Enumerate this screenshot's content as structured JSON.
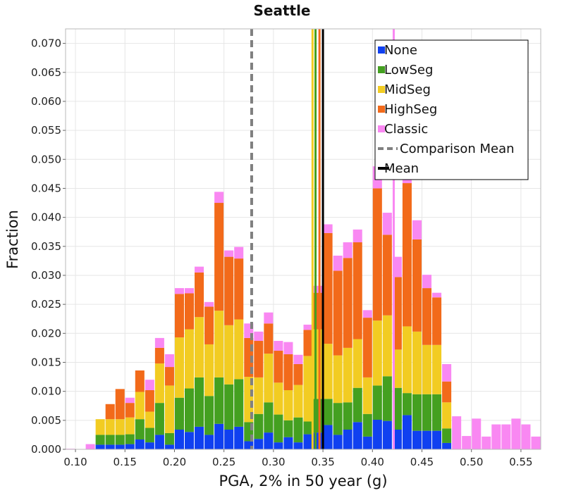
{
  "chart_data": {
    "type": "bar",
    "stacked": true,
    "title": "Seattle",
    "xlabel": "PGA, 2% in 50 year (g)",
    "ylabel": "Fraction",
    "xlim": [
      0.09,
      0.57
    ],
    "ylim": [
      0.0,
      0.0725
    ],
    "x_ticks": [
      "0.10",
      "0.15",
      "0.20",
      "0.25",
      "0.30",
      "0.35",
      "0.40",
      "0.45",
      "0.50",
      "0.55"
    ],
    "y_ticks": [
      "0.000",
      "0.005",
      "0.010",
      "0.015",
      "0.020",
      "0.025",
      "0.030",
      "0.035",
      "0.040",
      "0.045",
      "0.050",
      "0.055",
      "0.060",
      "0.065",
      "0.070"
    ],
    "grid": true,
    "legend_position": "top-right",
    "bin_width": 0.01,
    "bin_centers": [
      0.095,
      0.105,
      0.115,
      0.125,
      0.135,
      0.145,
      0.155,
      0.165,
      0.175,
      0.185,
      0.195,
      0.205,
      0.215,
      0.225,
      0.235,
      0.245,
      0.255,
      0.265,
      0.275,
      0.285,
      0.295,
      0.305,
      0.315,
      0.325,
      0.335,
      0.345,
      0.355,
      0.365,
      0.375,
      0.385,
      0.395,
      0.405,
      0.415,
      0.425,
      0.435,
      0.445,
      0.455,
      0.465,
      0.475,
      0.485,
      0.495,
      0.505,
      0.515,
      0.525,
      0.535,
      0.545,
      0.555,
      0.565
    ],
    "series": [
      {
        "name": "None",
        "color": "#1040f0",
        "values": [
          0,
          0,
          0,
          0.0008,
          0.0008,
          0.0008,
          0.0009,
          0.0017,
          0.0012,
          0.0025,
          0.0008,
          0.0034,
          0.003,
          0.0039,
          0.0025,
          0.0044,
          0.0034,
          0.0039,
          0.0014,
          0.0018,
          0.0029,
          0.0012,
          0.0021,
          0.0012,
          0.0026,
          0.0029,
          0.0042,
          0.0025,
          0.0034,
          0.0047,
          0.0022,
          0.0051,
          0.0049,
          0.0034,
          0.0059,
          0.0032,
          0.0032,
          0.0032,
          0.0011,
          0,
          0,
          0,
          0,
          0,
          0,
          0,
          0,
          0
        ]
      },
      {
        "name": "LowSeg",
        "color": "#44a020",
        "values": [
          0,
          0,
          0,
          0.0017,
          0.0017,
          0.0017,
          0.0017,
          0.0035,
          0.0025,
          0.0055,
          0.002,
          0.0055,
          0.0075,
          0.0085,
          0.0067,
          0.008,
          0.0078,
          0.0082,
          0.0033,
          0.0043,
          0.0052,
          0.0048,
          0.0029,
          0.0043,
          0.0022,
          0.0058,
          0.0045,
          0.0055,
          0.0047,
          0.0059,
          0.0039,
          0.0059,
          0.0077,
          0.0072,
          0.0038,
          0.0063,
          0.0063,
          0.0063,
          0.0025,
          0,
          0,
          0,
          0,
          0,
          0,
          0,
          0,
          0
        ]
      },
      {
        "name": "MidSeg",
        "color": "#f2cc22",
        "values": [
          0,
          0,
          0,
          0.0027,
          0.0027,
          0.0027,
          0.0029,
          0.0047,
          0.0028,
          0.0068,
          0.0082,
          0.0104,
          0.0102,
          0.0104,
          0.0089,
          0.0115,
          0.0102,
          0.0103,
          0.0078,
          0.0063,
          0.0084,
          0.0055,
          0.0052,
          0.0056,
          0.0113,
          0.012,
          0.0095,
          0.0082,
          0.0094,
          0.0084,
          0.0063,
          0.0112,
          0.0105,
          0.0066,
          0.0115,
          0.0108,
          0.0085,
          0.0085,
          0.0045,
          0,
          0,
          0,
          0,
          0,
          0,
          0,
          0,
          0
        ]
      },
      {
        "name": "HighSeg",
        "color": "#f26a1a",
        "values": [
          0,
          0,
          0,
          0,
          0.0026,
          0.0052,
          0.0025,
          0.0037,
          0.0037,
          0.0027,
          0.0032,
          0.0075,
          0.0062,
          0.0077,
          0.0065,
          0.0186,
          0.0118,
          0.0105,
          0.0067,
          0.0063,
          0.0052,
          0.0055,
          0.0062,
          0.0036,
          0.0045,
          0.0063,
          0.0191,
          0.0146,
          0.0155,
          0.0167,
          0.0103,
          0.0228,
          0.0139,
          0.0125,
          0.0247,
          0.0159,
          0.0098,
          0.0082,
          0.0036,
          0,
          0,
          0,
          0,
          0,
          0,
          0,
          0,
          0
        ]
      },
      {
        "name": "Classic",
        "color": "#f988f2",
        "values": [
          0.0001,
          0,
          0.0009,
          0,
          0,
          0,
          0.0009,
          0,
          0.0018,
          0.0017,
          0.0022,
          0.001,
          0.0009,
          0.001,
          0.0008,
          0.0019,
          0.0011,
          0.002,
          0.0025,
          0.0016,
          0.0019,
          0.0017,
          0.0021,
          0.0016,
          0.0009,
          0.0012,
          0.0015,
          0.0026,
          0.0027,
          0.0022,
          0.0013,
          0.0038,
          0.0038,
          0.0035,
          0.0044,
          0.0033,
          0.0023,
          0.0008,
          0.003,
          0.0057,
          0.0023,
          0.0053,
          0.0022,
          0.0043,
          0.0043,
          0.0053,
          0.0043,
          0.0022
        ]
      }
    ],
    "vertical_lines": [
      {
        "name": "Comparison Mean",
        "x": 0.278,
        "color": "#808080",
        "dashed": true
      },
      {
        "name": "Mean",
        "x": 0.35,
        "color": "#000000",
        "dashed": false
      },
      {
        "name": "MidSeg",
        "x": 0.3395,
        "color": "#f2cc22",
        "dashed": false
      },
      {
        "name": "LowSeg",
        "x": 0.3425,
        "color": "#44a020",
        "dashed": false
      },
      {
        "name": "HighSeg",
        "x": 0.3465,
        "color": "#f26a1a",
        "dashed": false
      },
      {
        "name": "Classic",
        "x": 0.4215,
        "color": "#f988f2",
        "dashed": false
      }
    ],
    "legend": [
      {
        "label": "None",
        "kind": "swatch",
        "color": "#1040f0"
      },
      {
        "label": "LowSeg",
        "kind": "swatch",
        "color": "#44a020"
      },
      {
        "label": "MidSeg",
        "kind": "swatch",
        "color": "#f2cc22"
      },
      {
        "label": "HighSeg",
        "kind": "swatch",
        "color": "#f26a1a"
      },
      {
        "label": "Classic",
        "kind": "swatch",
        "color": "#f988f2"
      },
      {
        "label": "Comparison Mean",
        "kind": "dashed-line",
        "color": "#808080"
      },
      {
        "label": "Mean",
        "kind": "line",
        "color": "#000000"
      }
    ]
  }
}
